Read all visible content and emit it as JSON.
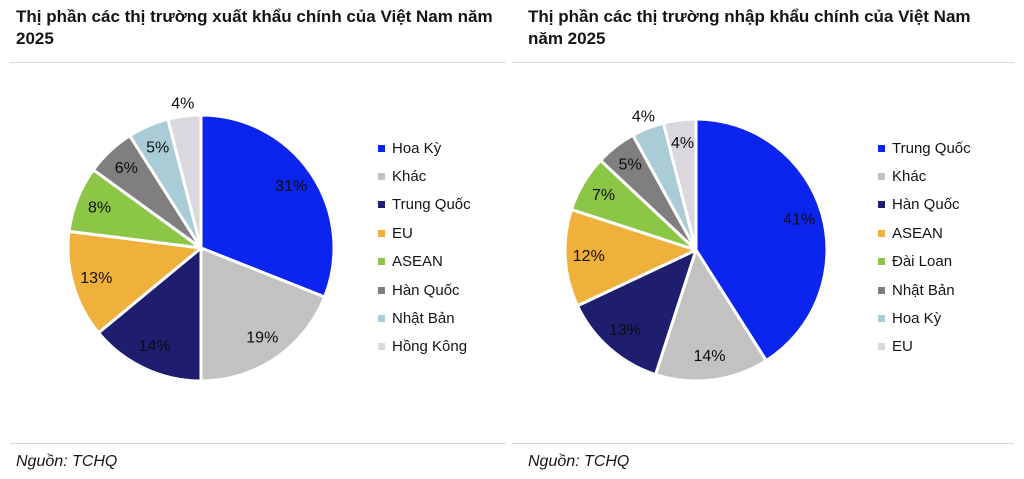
{
  "page": {
    "background_color": "#ffffff",
    "divider_color": "#d7d7d7"
  },
  "chart_data": [
    {
      "type": "pie",
      "title": "Thị phần các thị trường xuất khẩu chính của Việt Nam năm\n2025",
      "source_note": "Nguồn: TCHQ",
      "legend_position": "right",
      "value_suffix": "%",
      "slices": [
        {
          "label": "Hoa Kỳ",
          "value": 31,
          "color": "#0b24ee",
          "label_pos": "inside"
        },
        {
          "label": "Khác",
          "value": 19,
          "color": "#c2c2c2",
          "label_pos": "inside"
        },
        {
          "label": "Trung Quốc",
          "value": 14,
          "color": "#1e1d6e",
          "label_pos": "inside"
        },
        {
          "label": "EU",
          "value": 13,
          "color": "#f0b03c",
          "label_pos": "inside"
        },
        {
          "label": "ASEAN",
          "value": 8,
          "color": "#8cc646",
          "label_pos": "inside"
        },
        {
          "label": "Hàn Quốc",
          "value": 6,
          "color": "#7f7f7f",
          "label_pos": "inside"
        },
        {
          "label": "Nhật Bản",
          "value": 5,
          "color": "#a9ccd6",
          "label_pos": "inside"
        },
        {
          "label": "Hồng Kông",
          "value": 4,
          "color": "#dad8dc",
          "label_pos": "outside"
        }
      ]
    },
    {
      "type": "pie",
      "title": "Thị phần các thị trường nhập khẩu chính của Việt Nam\nnăm 2025",
      "source_note": "Nguồn: TCHQ",
      "legend_position": "right",
      "value_suffix": "%",
      "slices": [
        {
          "label": "Trung Quốc",
          "value": 41,
          "color": "#0b24ee",
          "label_pos": "inside"
        },
        {
          "label": "Khác",
          "value": 14,
          "color": "#c2c2c2",
          "label_pos": "inside"
        },
        {
          "label": "Hàn Quốc",
          "value": 13,
          "color": "#1e1d6e",
          "label_pos": "inside"
        },
        {
          "label": "ASEAN",
          "value": 12,
          "color": "#f0b03c",
          "label_pos": "inside"
        },
        {
          "label": "Đài Loan",
          "value": 7,
          "color": "#8cc646",
          "label_pos": "inside"
        },
        {
          "label": "Nhật Bản",
          "value": 5,
          "color": "#7f7f7f",
          "label_pos": "inside"
        },
        {
          "label": "Hoa Kỳ",
          "value": 4,
          "color": "#a9ccd6",
          "label_pos": "outside"
        },
        {
          "label": "EU",
          "value": 4,
          "color": "#dad8dc",
          "label_pos": "inside"
        }
      ]
    }
  ]
}
